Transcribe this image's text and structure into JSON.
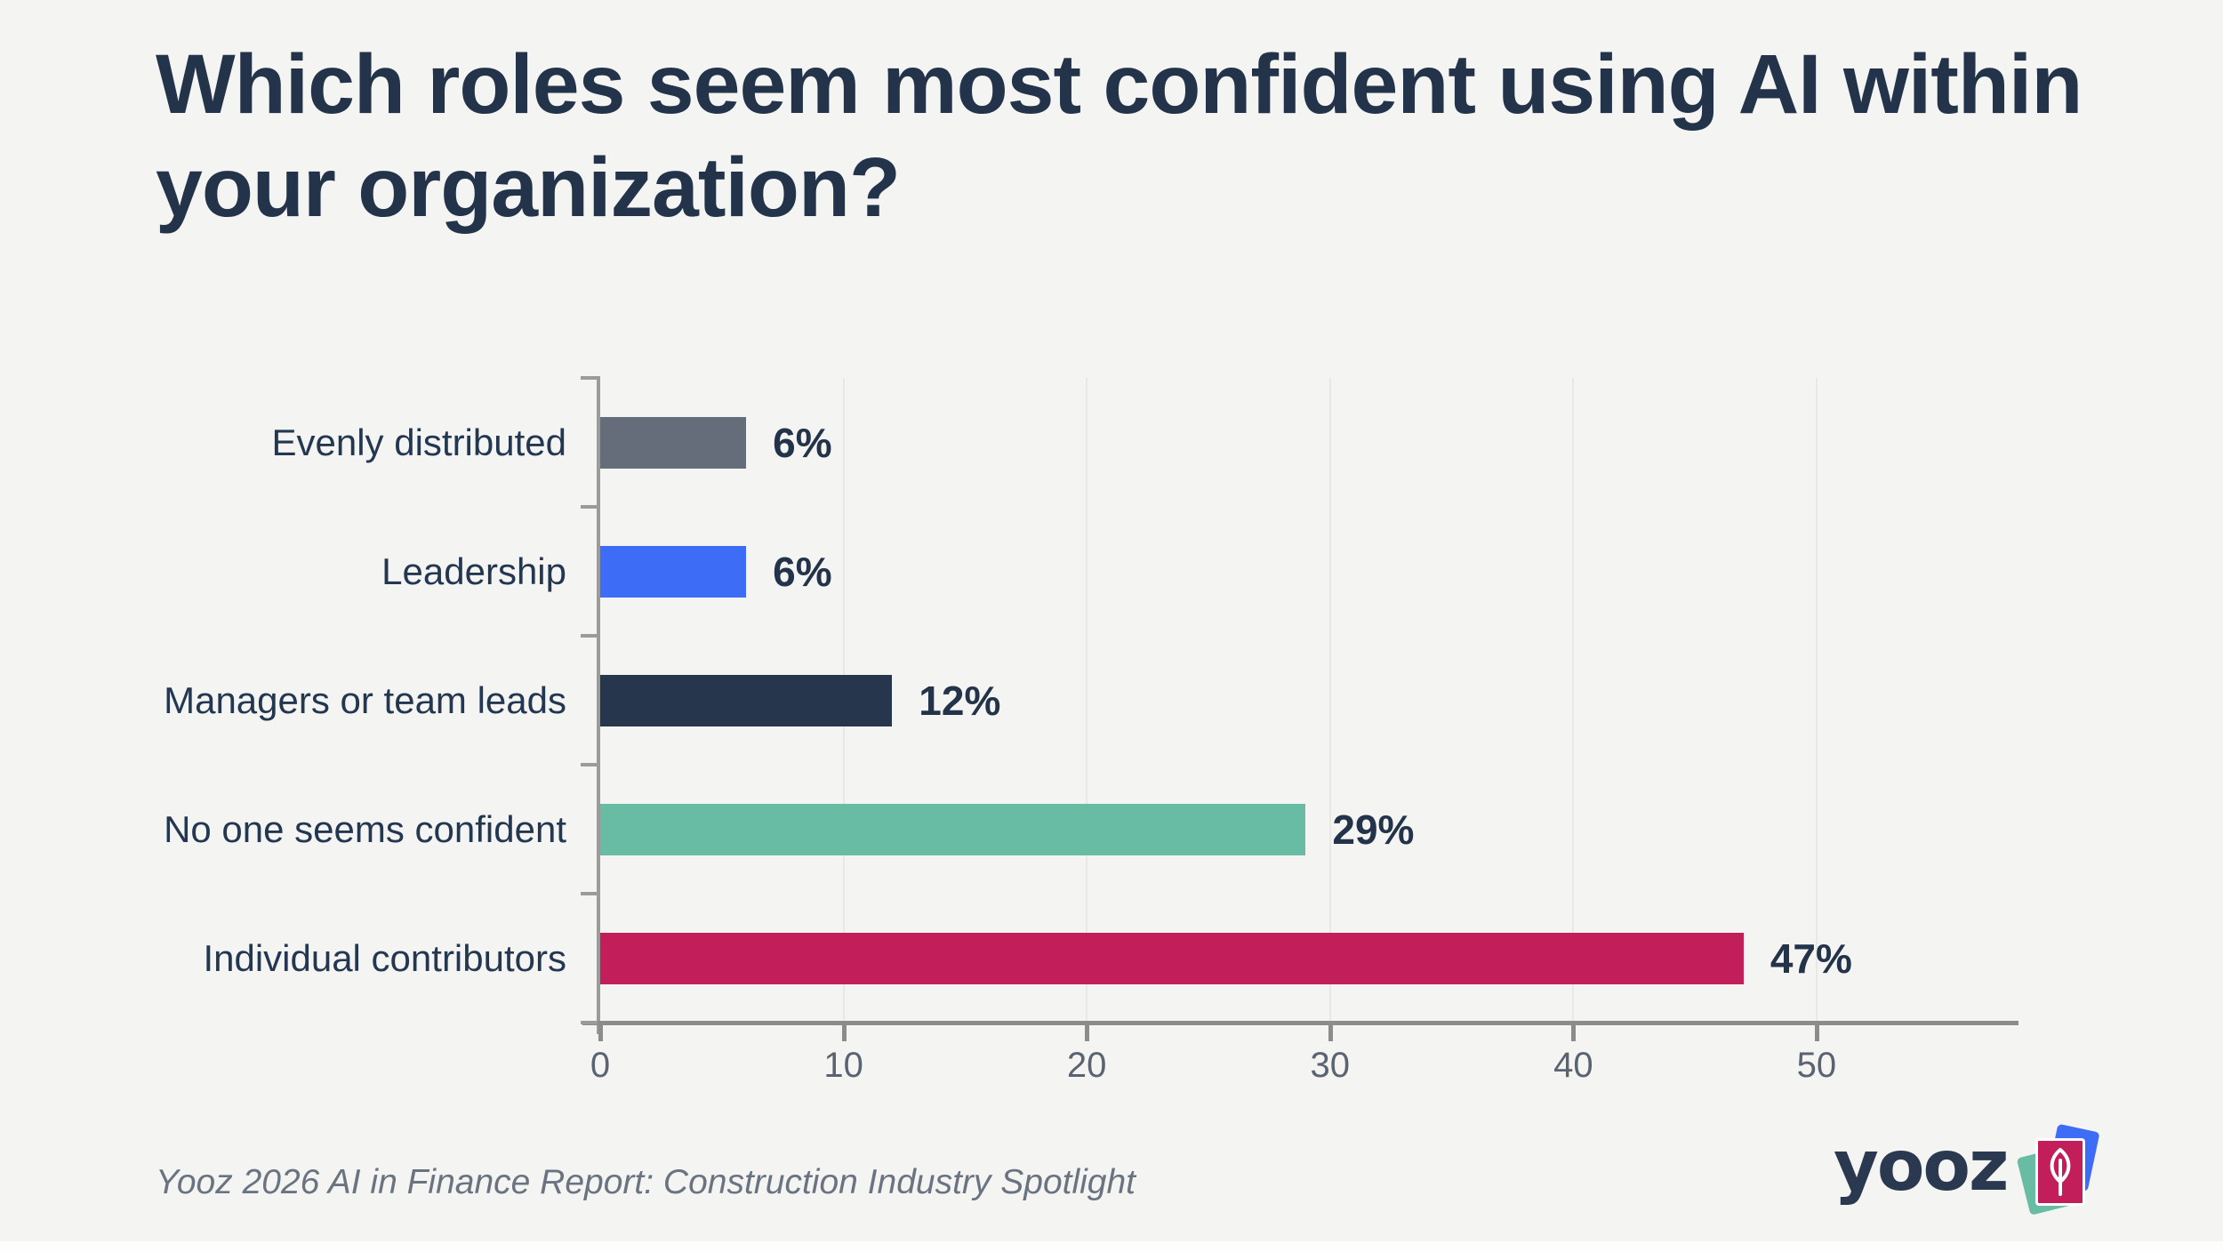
{
  "title": "Which roles seem most confident using AI within your organization?",
  "source": "Yooz 2026 AI in Finance Report: Construction Industry Spotlight",
  "logo": {
    "text": "yooz",
    "icon": "yooz-cards-leaf-icon",
    "card_colors": {
      "green": "#69BCA4",
      "blue": "#3D6CF6",
      "front": "#C21E59"
    }
  },
  "colors": {
    "background": "#F4F4F3",
    "title_text": "#233349",
    "category_text": "#243750",
    "value_text": "#233349",
    "axis_line": "#8C8C8C",
    "tick_label": "#5A6370",
    "gridline": "#E8E8E6",
    "source_text": "#6A7380"
  },
  "chart_data": {
    "type": "bar",
    "orientation": "horizontal",
    "title": "Which roles seem most confident using AI within your organization?",
    "xlabel": "",
    "ylabel": "",
    "categories": [
      "Evenly distributed",
      "Leadership",
      "Managers or team leads",
      "No one seems confident",
      "Individual contributors"
    ],
    "values": [
      6,
      6,
      12,
      29,
      47
    ],
    "value_labels": [
      "6%",
      "6%",
      "12%",
      "29%",
      "47%"
    ],
    "bar_colors": [
      "#666D7A",
      "#3D6CF6",
      "#26364C",
      "#69BCA4",
      "#C21E59"
    ],
    "x_ticks": [
      0,
      10,
      20,
      30,
      40,
      50
    ],
    "xlim": [
      0,
      58.3
    ],
    "grid": "vertical-light",
    "legend": "none"
  }
}
